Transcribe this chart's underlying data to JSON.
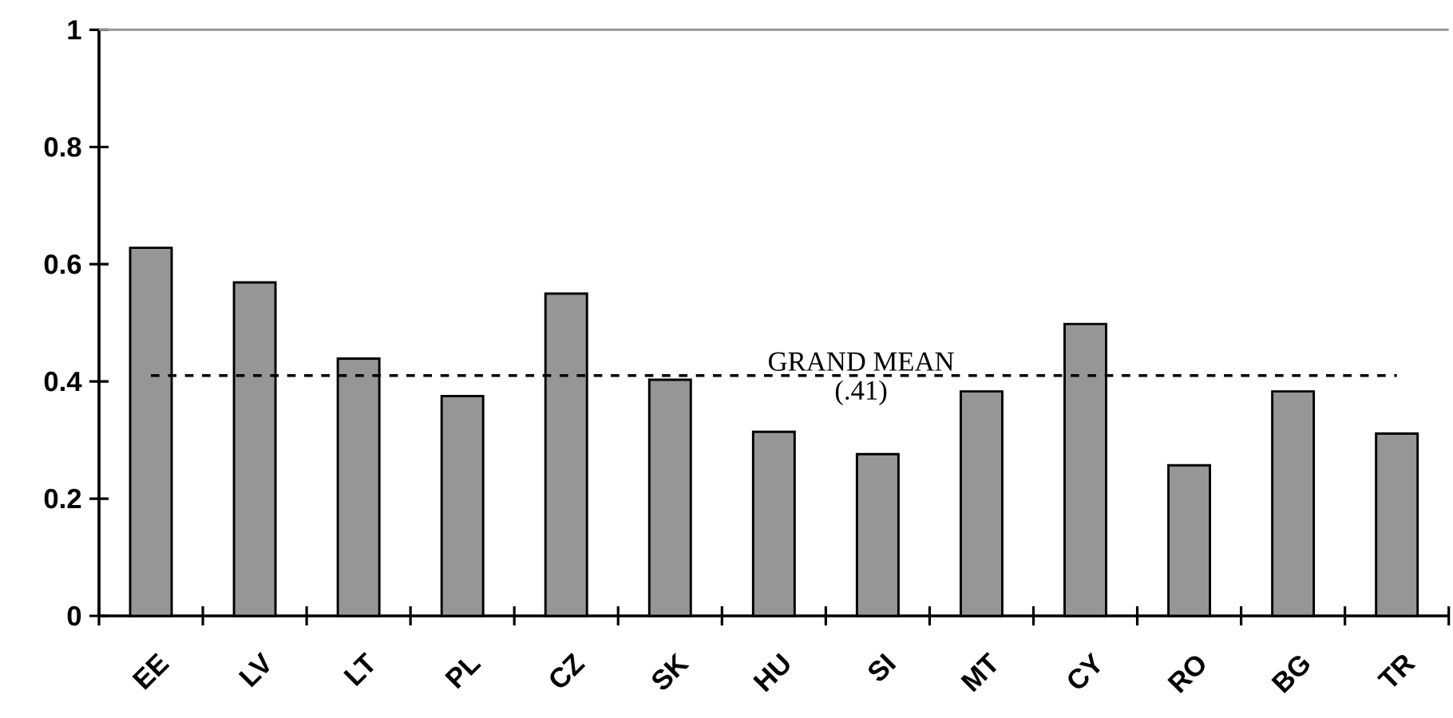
{
  "chart_data": {
    "type": "bar",
    "categories": [
      "EE",
      "LV",
      "LT",
      "PL",
      "CZ",
      "SK",
      "HU",
      "SI",
      "MT",
      "CY",
      "RO",
      "BG",
      "TR"
    ],
    "values": [
      0.628,
      0.569,
      0.439,
      0.375,
      0.55,
      0.403,
      0.314,
      0.276,
      0.383,
      0.498,
      0.257,
      0.383,
      0.311
    ],
    "color": "#969696",
    "ylim": [
      0,
      1
    ],
    "yticks": [
      0,
      0.2,
      0.4,
      0.6,
      0.8,
      1
    ],
    "ref_lines": [
      {
        "axis": "y",
        "value": 0.41,
        "label": "GRAND MEAN",
        "line_style": "dashed",
        "color": "#000000"
      }
    ],
    "annotations": [
      "(.41)"
    ],
    "grid": false
  }
}
